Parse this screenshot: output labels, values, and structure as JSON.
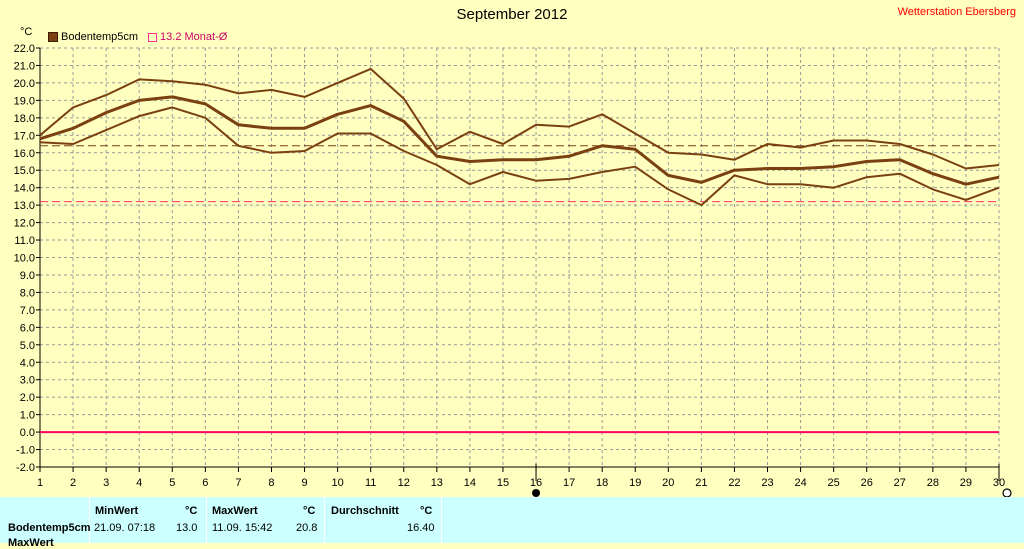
{
  "header": {
    "title": "September 2012",
    "station": "Wetterstation Ebersberg",
    "unit": "°C"
  },
  "legend": {
    "series_label": "Bodentemp5cm",
    "avg_label": "13.2 Monat-Ø"
  },
  "colors": {
    "background": "#ffffc0",
    "series": "#7a4010",
    "reference": "#ff3366",
    "zero_line": "#ff0066",
    "grid": "#999999",
    "panel": "#ccffff",
    "station": "#ff0000"
  },
  "chart_data": {
    "type": "line",
    "x": [
      1,
      2,
      3,
      4,
      5,
      6,
      7,
      8,
      9,
      10,
      11,
      12,
      13,
      14,
      15,
      16,
      17,
      18,
      19,
      20,
      21,
      22,
      23,
      24,
      25,
      26,
      27,
      28,
      29,
      30
    ],
    "xlim": [
      1,
      30
    ],
    "ylim": [
      -2,
      22
    ],
    "yticks": [
      "-2.0",
      "-1.0",
      "0.0",
      "1.0",
      "2.0",
      "3.0",
      "4.0",
      "5.0",
      "6.0",
      "7.0",
      "8.0",
      "9.0",
      "10.0",
      "11.0",
      "12.0",
      "13.0",
      "14.0",
      "15.0",
      "16.0",
      "17.0",
      "18.0",
      "19.0",
      "20.0",
      "21.0",
      "22.0"
    ],
    "xticks": [
      "1",
      "2",
      "3",
      "4",
      "5",
      "6",
      "7",
      "8",
      "9",
      "10",
      "11",
      "12",
      "13",
      "14",
      "15",
      "16",
      "17",
      "18",
      "19",
      "20",
      "21",
      "22",
      "23",
      "24",
      "25",
      "26",
      "27",
      "28",
      "29",
      "30"
    ],
    "grid": true,
    "series": [
      {
        "name": "Bodentemp5cm",
        "role": "max",
        "values": [
          17.0,
          18.6,
          19.3,
          20.2,
          20.1,
          19.9,
          19.4,
          19.6,
          19.2,
          20.0,
          20.8,
          19.1,
          16.2,
          17.2,
          16.5,
          17.6,
          17.5,
          18.2,
          17.1,
          16.0,
          15.9,
          15.6,
          16.5,
          16.3,
          16.7,
          16.7,
          16.5,
          15.9,
          15.1,
          15.3
        ]
      },
      {
        "name": "Bodentemp5cm",
        "role": "mean",
        "values": [
          16.8,
          17.4,
          18.3,
          19.0,
          19.2,
          18.8,
          17.6,
          17.4,
          17.4,
          18.2,
          18.7,
          17.8,
          15.8,
          15.5,
          15.6,
          15.6,
          15.8,
          16.4,
          16.2,
          14.7,
          14.3,
          15.0,
          15.1,
          15.1,
          15.2,
          15.5,
          15.6,
          14.8,
          14.2,
          14.6
        ]
      },
      {
        "name": "Bodentemp5cm",
        "role": "min",
        "values": [
          16.6,
          16.5,
          17.3,
          18.1,
          18.6,
          18.0,
          16.4,
          16.0,
          16.1,
          17.1,
          17.1,
          16.1,
          15.3,
          14.2,
          14.9,
          14.4,
          14.5,
          14.9,
          15.2,
          13.9,
          13.0,
          14.7,
          14.2,
          14.2,
          14.0,
          14.6,
          14.8,
          13.9,
          13.3,
          14.0
        ]
      }
    ],
    "reference_lines": [
      {
        "value": 16.4,
        "style": "dashed",
        "color": "#7a4010"
      },
      {
        "value": 13.2,
        "style": "dashed",
        "color": "#ff3366"
      },
      {
        "value": 0.0,
        "style": "solid",
        "color": "#ff0066"
      }
    ],
    "markers": [
      {
        "x": 16,
        "symbol": "filled-circle"
      },
      {
        "x": 30,
        "symbol": "open-circle"
      }
    ]
  },
  "stats": {
    "row_label": "Bodentemp5cm",
    "row_label_2": "MaxWert",
    "min_header": "MinWert",
    "min_unit": "°C",
    "min_time": "21.09.  07:18",
    "min_value": "13.0",
    "max_header": "MaxWert",
    "max_unit": "°C",
    "max_time": "11.09.  15:42",
    "max_value": "20.8",
    "avg_header": "Durchschnitt",
    "avg_unit": "°C",
    "avg_value": "16.40"
  }
}
